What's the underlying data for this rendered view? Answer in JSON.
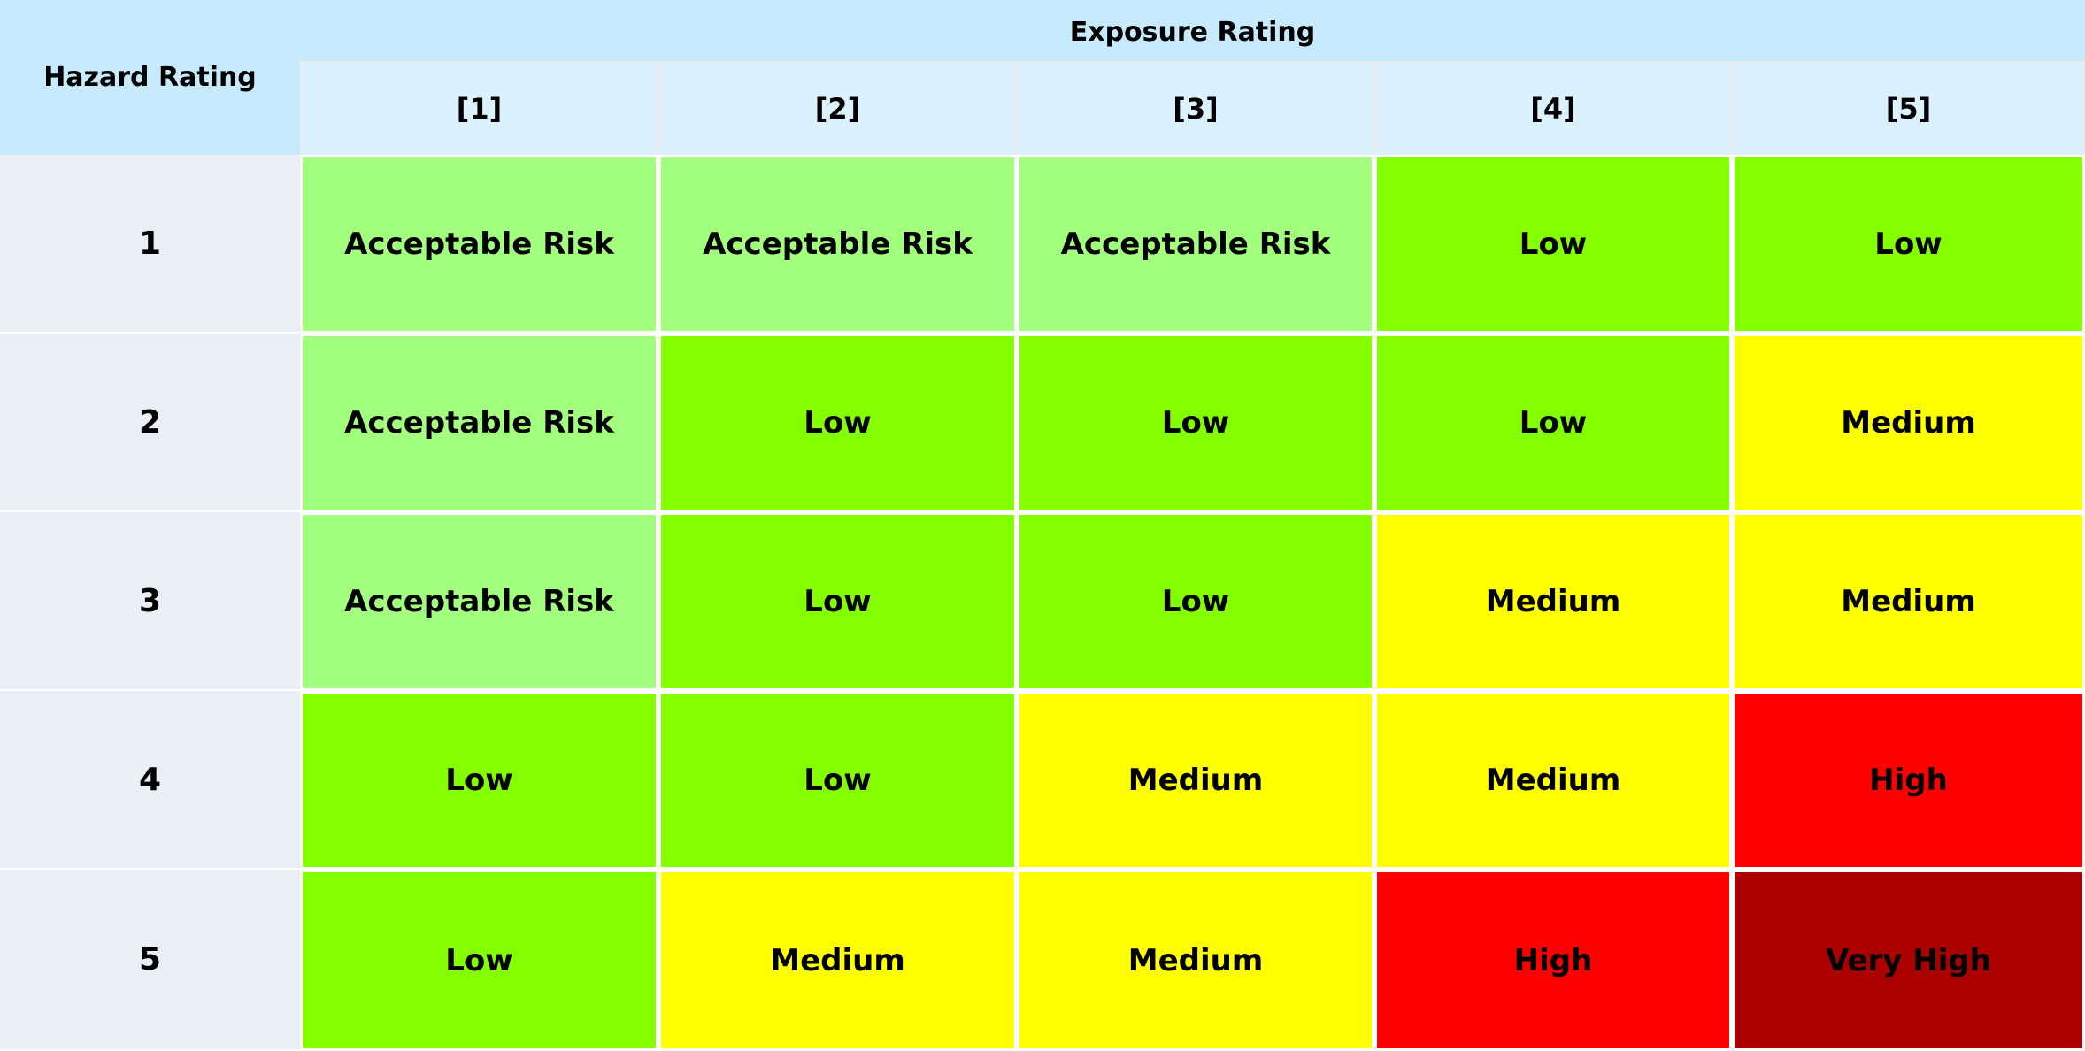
{
  "header": {
    "corner_label": "Hazard Rating",
    "exposure_title": "Exposure Rating",
    "exposure_columns": [
      "[1]",
      "[2]",
      "[3]",
      "[4]",
      "[5]"
    ]
  },
  "levels": {
    "Acceptable Risk": "#a3ff7e",
    "Low": "#84ff00",
    "Medium": "#ffff00",
    "High": "#ff0000",
    "Very High": "#aa0000"
  },
  "chart_data": {
    "type": "table",
    "ylabel": "Hazard Rating",
    "xlabel": "Exposure Rating",
    "columns": [
      "[1]",
      "[2]",
      "[3]",
      "[4]",
      "[5]"
    ],
    "rows": [
      {
        "hazard": "1",
        "cells": [
          "Acceptable Risk",
          "Acceptable Risk",
          "Acceptable Risk",
          "Low",
          "Low"
        ]
      },
      {
        "hazard": "2",
        "cells": [
          "Acceptable Risk",
          "Low",
          "Low",
          "Low",
          "Medium"
        ]
      },
      {
        "hazard": "3",
        "cells": [
          "Acceptable Risk",
          "Low",
          "Low",
          "Medium",
          "Medium"
        ]
      },
      {
        "hazard": "4",
        "cells": [
          "Low",
          "Low",
          "Medium",
          "Medium",
          "High"
        ]
      },
      {
        "hazard": "5",
        "cells": [
          "Low",
          "Medium",
          "Medium",
          "High",
          "Very High"
        ]
      }
    ]
  }
}
